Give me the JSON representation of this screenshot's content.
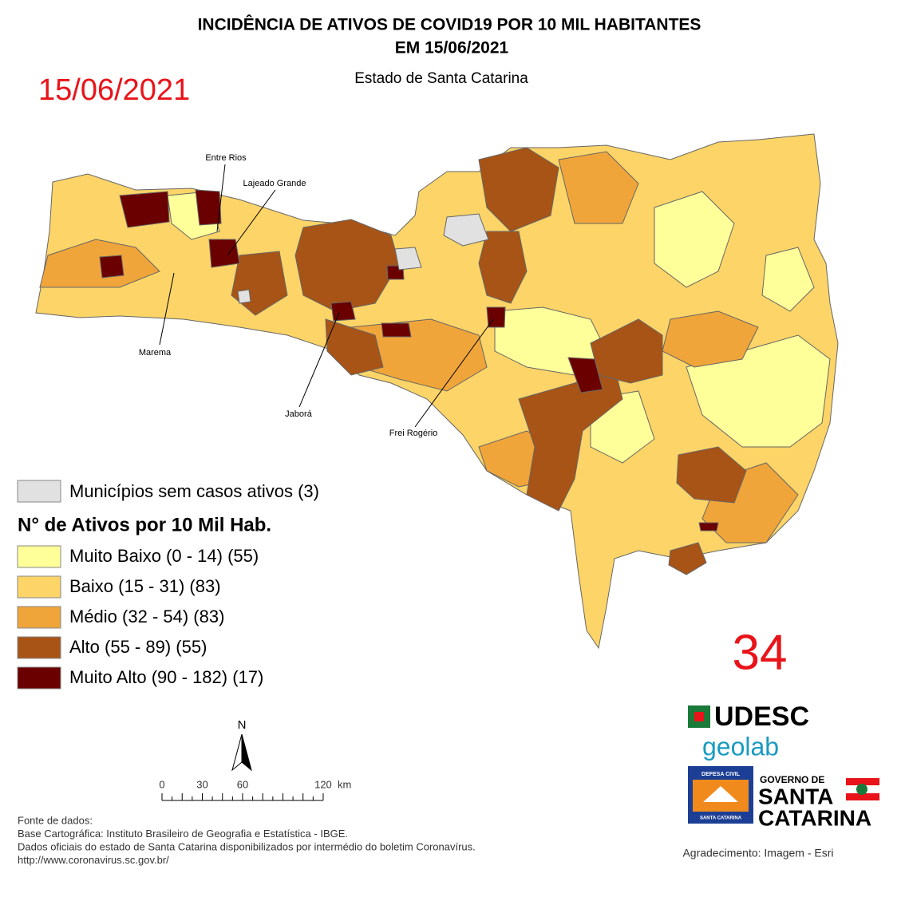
{
  "header": {
    "title": "INCIDÊNCIA DE ATIVOS DE COVID19 POR 10 MIL HABITANTES",
    "title_line2": "EM 15/06/2021",
    "subtitle": "Estado de Santa Catarina",
    "date": "15/06/2021"
  },
  "map": {
    "labels": [
      "Entre Rios",
      "Lajeado Grande",
      "Marema",
      "Jaborá",
      "Frei Rogério"
    ]
  },
  "legend": {
    "no_cases": {
      "label": "Municípios sem casos ativos (3)",
      "color": "#e1e1e1"
    },
    "title": "N° de Ativos por 10 Mil Hab.",
    "items": [
      {
        "label": "Muito Baixo (0 - 14) (55)",
        "color": "#ffff99"
      },
      {
        "label": "Baixo (15 - 31) (83)",
        "color": "#fcd468"
      },
      {
        "label": "Médio (32 - 54) (83)",
        "color": "#f0a53a"
      },
      {
        "label": "Alto (55 - 89) (55)",
        "color": "#a85417"
      },
      {
        "label": "Muito Alto (90 - 182) (17)",
        "color": "#6b0000"
      }
    ]
  },
  "counter": 34,
  "north": "N",
  "scale": {
    "ticks": [
      0,
      30,
      60,
      120
    ],
    "unit": "km"
  },
  "source": {
    "lines": [
      "Fonte de dados:",
      "Base Cartográfica: Instituto Brasileiro de Geografia e Estatística - IBGE.",
      "Dados oficiais do estado de Santa Catarina disponibilizados por intermédio do boletim Coronavírus.",
      "http://www.coronavirus.sc.gov.br/"
    ]
  },
  "logos": {
    "udesc": "UDESC",
    "geolab": "geolab",
    "defesa_civil": "DEFESA CIVIL",
    "defesa_state": "SANTA CATARINA",
    "gov_line1": "GOVERNO DE",
    "gov_line2": "SANTA",
    "gov_line3": "CATARINA"
  },
  "credit": "Agradecimento: Imagem - Esri"
}
